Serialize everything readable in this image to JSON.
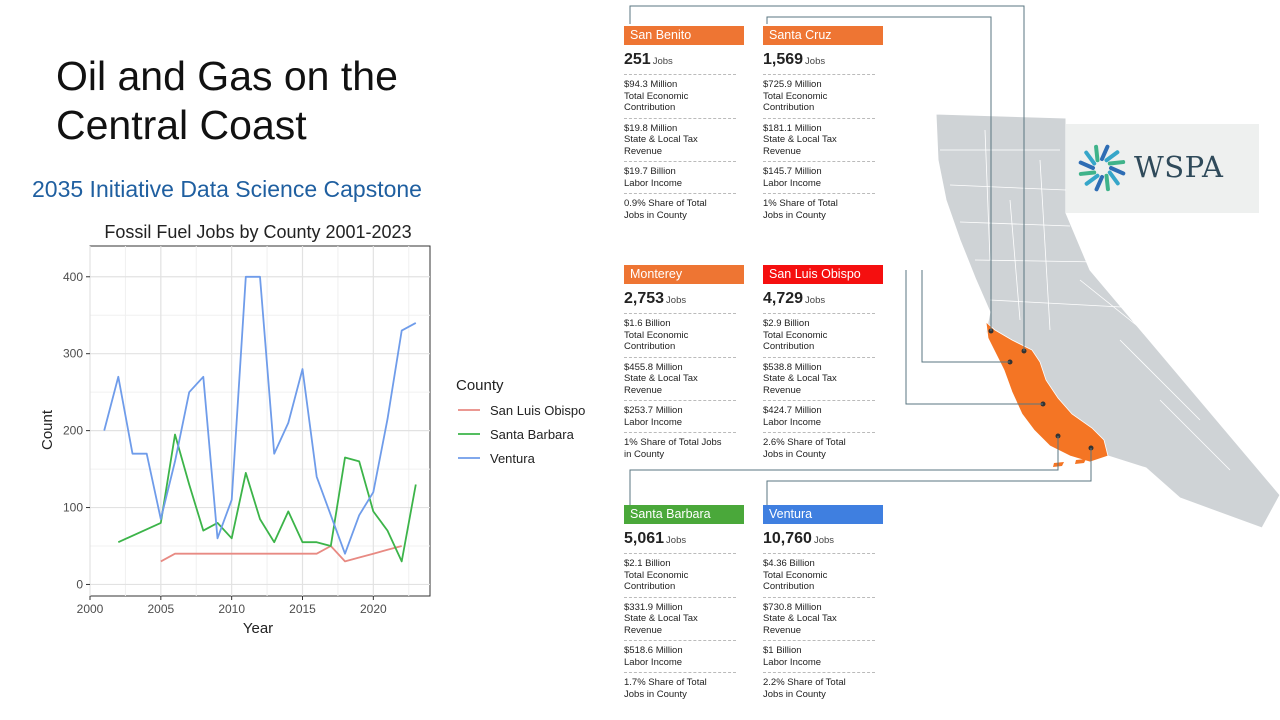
{
  "slide": {
    "title_line1": "Oil and Gas on the",
    "title_line2": "Central Coast",
    "subtitle": "2035 Initiative Data Science Capstone"
  },
  "chart_data": {
    "type": "line",
    "title": "Fossil Fuel Jobs by County 2001-2023",
    "xlabel": "Year",
    "ylabel": "Count",
    "xlim": [
      2000,
      2024
    ],
    "ylim": [
      -15,
      440
    ],
    "xticks": [
      2000,
      2005,
      2010,
      2015,
      2020
    ],
    "yticks": [
      0,
      100,
      200,
      300,
      400
    ],
    "grid": true,
    "legend_title": "County",
    "legend_position": "right",
    "series": [
      {
        "name": "San Luis Obispo",
        "color": "#e88a83",
        "x": [
          2005,
          2006,
          2007,
          2008,
          2009,
          2010,
          2011,
          2012,
          2013,
          2014,
          2015,
          2016,
          2017,
          2018,
          2019,
          2020,
          2021,
          2022
        ],
        "y": [
          30,
          40,
          40,
          40,
          40,
          40,
          40,
          40,
          40,
          40,
          40,
          40,
          50,
          30,
          35,
          40,
          45,
          50
        ]
      },
      {
        "name": "Santa Barbara",
        "color": "#3cb449",
        "x": [
          2002,
          2005,
          2006,
          2007,
          2008,
          2009,
          2010,
          2011,
          2012,
          2013,
          2014,
          2015,
          2016,
          2017,
          2018,
          2019,
          2020,
          2021,
          2022,
          2023
        ],
        "y": [
          55,
          80,
          195,
          130,
          70,
          80,
          60,
          145,
          85,
          55,
          95,
          55,
          55,
          50,
          165,
          160,
          95,
          70,
          30,
          130
        ]
      },
      {
        "name": "Ventura",
        "color": "#6f9cea",
        "x": [
          2001,
          2002,
          2003,
          2004,
          2005,
          2006,
          2007,
          2008,
          2009,
          2010,
          2011,
          2012,
          2013,
          2014,
          2015,
          2016,
          2017,
          2018,
          2019,
          2020,
          2021,
          2022,
          2023
        ],
        "y": [
          200,
          270,
          170,
          170,
          85,
          160,
          250,
          270,
          60,
          110,
          400,
          400,
          170,
          210,
          280,
          140,
          90,
          40,
          90,
          120,
          215,
          330,
          340
        ]
      }
    ]
  },
  "infographic": {
    "unit_label": "Jobs",
    "counties": [
      {
        "name": "San Benito",
        "color": "#ee7533",
        "jobs": "251",
        "s1a": "$94.3 Million",
        "s1b": "Total Economic",
        "s1c": "Contribution",
        "s2a": "$19.8 Million",
        "s2b": "State & Local Tax",
        "s2c": "Revenue",
        "s3a": "$19.7 Billion",
        "s3b": "Labor Income",
        "s4a": "0.9% Share of Total",
        "s4b": "Jobs in County"
      },
      {
        "name": "Santa Cruz",
        "color": "#ee7533",
        "jobs": "1,569",
        "s1a": "$725.9 Million",
        "s1b": "Total Economic",
        "s1c": "Contribution",
        "s2a": "$181.1 Million",
        "s2b": "State & Local Tax",
        "s2c": "Revenue",
        "s3a": "$145.7 Million",
        "s3b": "Labor Income",
        "s4a": "1% Share of Total",
        "s4b": "Jobs in County"
      },
      {
        "name": "Monterey",
        "color": "#ee7533",
        "jobs": "2,753",
        "s1a": "$1.6 Billion",
        "s1b": "Total Economic",
        "s1c": "Contribution",
        "s2a": "$455.8 Million",
        "s2b": "State & Local Tax",
        "s2c": "Revenue",
        "s3a": "$253.7 Million",
        "s3b": "Labor Income",
        "s4a": "1% Share of Total Jobs",
        "s4b": "in County"
      },
      {
        "name": "San Luis Obispo",
        "color": "#f50f0f",
        "jobs": "4,729",
        "s1a": "$2.9 Billion",
        "s1b": "Total Economic",
        "s1c": "Contribution",
        "s2a": "$538.8 Million",
        "s2b": "State & Local Tax",
        "s2c": "Revenue",
        "s3a": "$424.7 Million",
        "s3b": "Labor Income",
        "s4a": "2.6% Share of Total",
        "s4b": "Jobs in County"
      },
      {
        "name": "Santa Barbara",
        "color": "#4aa83a",
        "jobs": "5,061",
        "s1a": "$2.1 Billion",
        "s1b": "Total Economic",
        "s1c": "Contribution",
        "s2a": "$331.9 Million",
        "s2b": "State & Local Tax",
        "s2c": "Revenue",
        "s3a": "$518.6 Million",
        "s3b": "Labor Income",
        "s4a": "1.7% Share of Total",
        "s4b": "Jobs in County"
      },
      {
        "name": "Ventura",
        "color": "#3f7fe0",
        "jobs": "10,760",
        "s1a": "$4.36  Billion",
        "s1b": "Total Economic",
        "s1c": "Contribution",
        "s2a": "$730.8 Million",
        "s2b": "State & Local Tax",
        "s2c": "Revenue",
        "s3a": "$1 Billion",
        "s3b": "Labor Income",
        "s4a": "2.2% Share of Total",
        "s4b": "Jobs in County"
      }
    ]
  },
  "logo": {
    "text": "WSPA",
    "bg": "#eef0ef",
    "text_color": "#2f4a5a"
  },
  "map": {
    "land_color": "#cfd3d6",
    "highlight_color": "#f47524",
    "line_color": "#5a7680"
  }
}
